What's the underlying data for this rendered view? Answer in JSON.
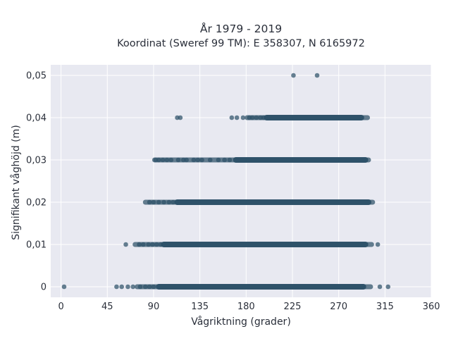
{
  "chart_data": {
    "type": "scatter",
    "title": "År 1979 - 2019",
    "subtitle": "Koordinat (Sweref 99 TM): E 358307, N 6165972",
    "xlabel": "Vågriktning (grader)",
    "ylabel": "Signifikant våghöjd (m)",
    "xlim": [
      -10,
      360
    ],
    "ylim": [
      -0.0025,
      0.0525
    ],
    "x_ticks": [
      0,
      45,
      90,
      135,
      180,
      225,
      270,
      315,
      360
    ],
    "y_ticks": [
      0,
      0.01,
      0.02,
      0.03,
      0.04,
      0.05
    ],
    "x_tick_labels": [
      "0",
      "45",
      "90",
      "135",
      "180",
      "225",
      "270",
      "315",
      "360"
    ],
    "y_tick_labels": [
      "0",
      "0,01",
      "0,02",
      "0,03",
      "0,04",
      "0,05"
    ],
    "grid": true,
    "legend": "none",
    "colors": {
      "marker": "#2c5068",
      "plot_bg": "#e8e9f1",
      "grid": "#ffffff"
    },
    "series": [
      {
        "points": [
          [
            3,
            0
          ],
          [
            54,
            0
          ],
          [
            59,
            0
          ],
          [
            65,
            0
          ],
          [
            70,
            0
          ],
          [
            310,
            0
          ],
          [
            318,
            0
          ],
          [
            63,
            0.01
          ],
          [
            308,
            0.01
          ],
          [
            113,
            0.04
          ],
          [
            116,
            0.04
          ],
          [
            166,
            0.04
          ],
          [
            171,
            0.04
          ],
          [
            177,
            0.04
          ],
          [
            226,
            0.05
          ],
          [
            249,
            0.05
          ]
        ],
        "bands": [
          {
            "y": 0,
            "x_from": 74,
            "x_to": 301,
            "dense_from": 95,
            "dense_to": 294
          },
          {
            "y": 0.01,
            "x_from": 72,
            "x_to": 302,
            "dense_from": 100,
            "dense_to": 296
          },
          {
            "y": 0.02,
            "x_from": 82,
            "x_to": 303,
            "dense_from": 113,
            "dense_to": 299
          },
          {
            "y": 0.03,
            "x_from": 91,
            "x_to": 299,
            "dense_from": 170,
            "dense_to": 296
          },
          {
            "y": 0.04,
            "x_from": 181,
            "x_to": 298,
            "dense_from": 200,
            "dense_to": 292
          }
        ],
        "sparse_points": [
          [
            92,
            0.03
          ],
          [
            95,
            0.03
          ],
          [
            99,
            0.03
          ],
          [
            103,
            0.03
          ],
          [
            107,
            0.03
          ],
          [
            114,
            0.03
          ],
          [
            119,
            0.03
          ],
          [
            122,
            0.03
          ],
          [
            129,
            0.03
          ],
          [
            133,
            0.03
          ],
          [
            137,
            0.03
          ],
          [
            145,
            0.03
          ],
          [
            153,
            0.03
          ],
          [
            159,
            0.03
          ],
          [
            164,
            0.03
          ],
          [
            86,
            0.02
          ],
          [
            90,
            0.02
          ],
          [
            95,
            0.02
          ],
          [
            100,
            0.02
          ],
          [
            105,
            0.02
          ],
          [
            109,
            0.02
          ],
          [
            76,
            0.01
          ],
          [
            80,
            0.01
          ],
          [
            85,
            0.01
          ],
          [
            89,
            0.01
          ],
          [
            93,
            0.01
          ],
          [
            97,
            0.01
          ],
          [
            77,
            0
          ],
          [
            82,
            0
          ],
          [
            86,
            0
          ],
          [
            90,
            0
          ],
          [
            183,
            0.04
          ],
          [
            186,
            0.04
          ],
          [
            190,
            0.04
          ],
          [
            194,
            0.04
          ],
          [
            197,
            0.04
          ]
        ]
      }
    ]
  }
}
